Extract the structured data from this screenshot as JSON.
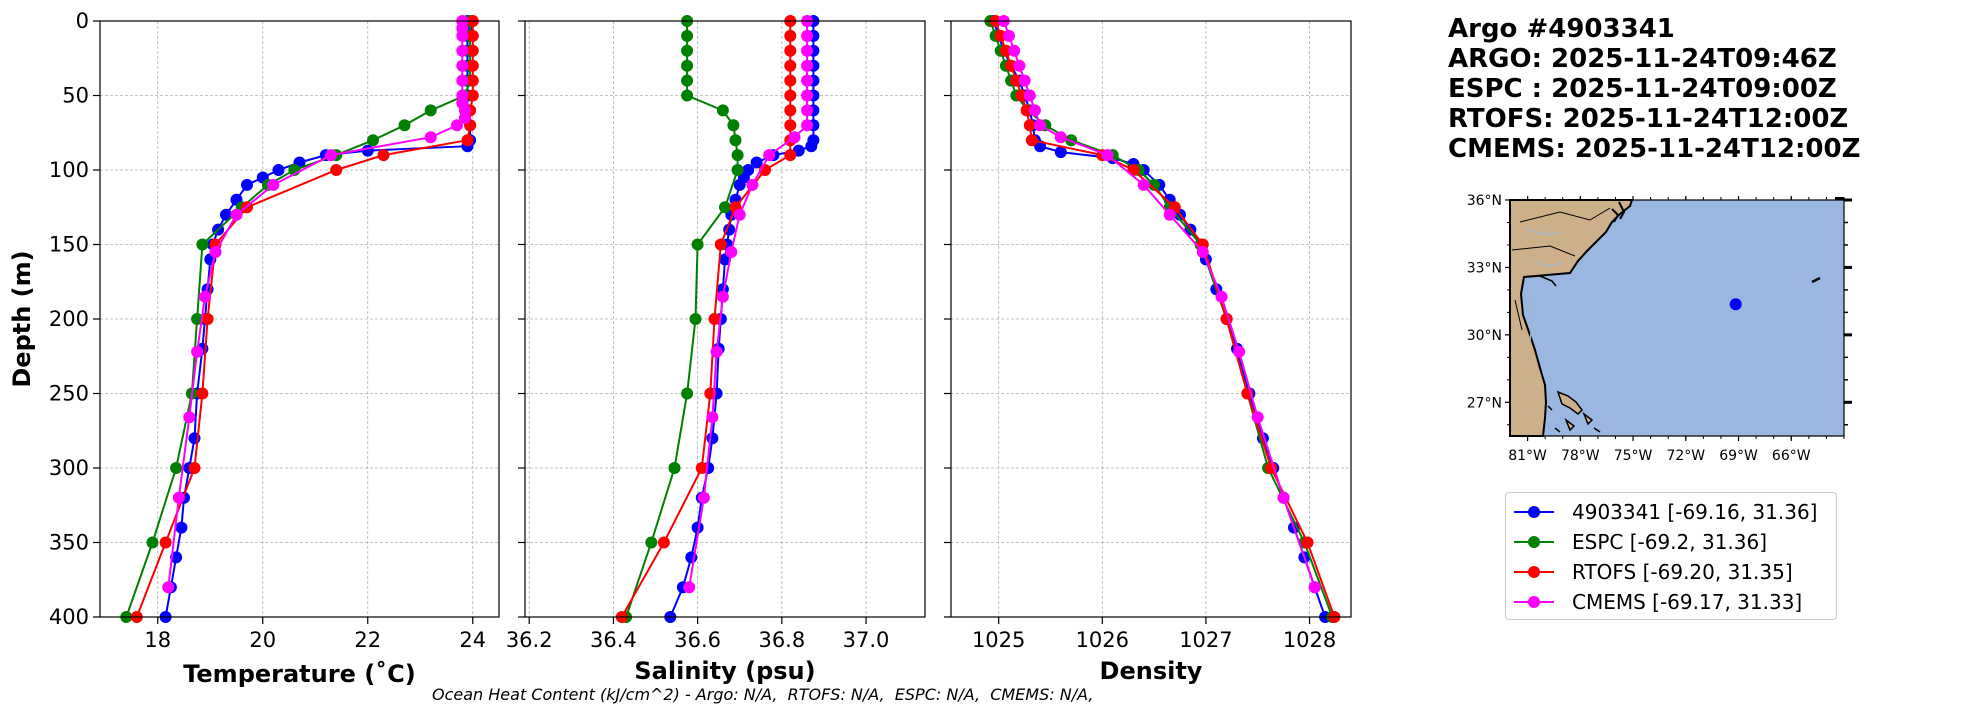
{
  "header": {
    "lines": [
      "Argo #4903341",
      "ARGO: 2025-11-24T09:46Z",
      "ESPC : 2025-11-24T09:00Z",
      "RTOFS: 2025-11-24T12:00Z",
      "CMEMS: 2025-11-24T12:00Z"
    ]
  },
  "footer": "Ocean Heat Content (kJ/cm^2) - Argo: N/A,  RTOFS: N/A,  ESPC: N/A,  CMEMS: N/A,",
  "legend": [
    {
      "label": "4903341 [-69.16, 31.36]",
      "color": "#0000ff"
    },
    {
      "label": "ESPC [-69.2, 31.36]",
      "color": "#008000"
    },
    {
      "label": "RTOFS [-69.20, 31.35]",
      "color": "#ff0000"
    },
    {
      "label": "CMEMS [-69.17, 31.33]",
      "color": "#ff00ff"
    }
  ],
  "colors": {
    "argo": "#0000ff",
    "espc": "#008000",
    "rtofs": "#ff0000",
    "cmems": "#ff00ff",
    "ocean": "#99b7e1",
    "land": "#cdaf8a",
    "grid": "#b0b0b0"
  },
  "chart_data": [
    {
      "type": "line",
      "xlabel": "Temperature (˚C)",
      "ylabel": "Depth (m)",
      "xlim": [
        16.9,
        24.5
      ],
      "ylim": [
        400,
        0
      ],
      "xticks": [
        18,
        20,
        22,
        24
      ],
      "xtick_labels": [
        "18",
        "20",
        "22",
        "24"
      ],
      "yticks": [
        0,
        50,
        100,
        150,
        200,
        250,
        300,
        350,
        400
      ],
      "ytick_labels": [
        "0",
        "50",
        "100",
        "150",
        "200",
        "250",
        "300",
        "350",
        "400"
      ],
      "grid": true,
      "series": [
        {
          "name": "argo",
          "depth": [
            0,
            5,
            10,
            20,
            30,
            40,
            50,
            60,
            70,
            80,
            84,
            87,
            90,
            95,
            100,
            105,
            110,
            120,
            130,
            140,
            150,
            160,
            180,
            200,
            220,
            250,
            280,
            300,
            320,
            340,
            360,
            380,
            400
          ],
          "values": [
            23.9,
            23.9,
            23.9,
            23.9,
            23.9,
            23.9,
            23.9,
            23.9,
            23.95,
            23.95,
            23.9,
            22.0,
            21.2,
            20.7,
            20.3,
            20.0,
            19.7,
            19.5,
            19.3,
            19.15,
            19.05,
            19.0,
            18.95,
            18.9,
            18.85,
            18.75,
            18.7,
            18.6,
            18.5,
            18.45,
            18.35,
            18.25,
            18.15
          ]
        },
        {
          "name": "espc",
          "depth": [
            0,
            10,
            20,
            30,
            40,
            50,
            60,
            70,
            80,
            90,
            100,
            110,
            125,
            150,
            200,
            250,
            300,
            350,
            400
          ],
          "values": [
            23.95,
            23.95,
            23.95,
            23.95,
            23.95,
            23.85,
            23.2,
            22.7,
            22.1,
            21.4,
            20.6,
            20.1,
            19.6,
            18.85,
            18.75,
            18.65,
            18.35,
            17.9,
            17.4
          ]
        },
        {
          "name": "rtofs",
          "depth": [
            0,
            10,
            20,
            30,
            40,
            50,
            60,
            70,
            80,
            90,
            100,
            125,
            150,
            200,
            250,
            300,
            350,
            400
          ],
          "values": [
            24.0,
            24.0,
            24.0,
            24.0,
            24.0,
            24.0,
            23.95,
            23.95,
            23.9,
            22.3,
            21.4,
            19.7,
            19.1,
            18.95,
            18.85,
            18.7,
            18.15,
            17.6
          ]
        },
        {
          "name": "cmems",
          "depth": [
            0,
            5,
            10,
            20,
            30,
            40,
            50,
            55,
            60,
            65,
            70,
            78,
            90,
            110,
            130,
            155,
            185,
            222,
            266,
            320,
            380
          ],
          "values": [
            23.8,
            23.8,
            23.8,
            23.8,
            23.8,
            23.8,
            23.8,
            23.8,
            23.85,
            23.85,
            23.7,
            23.2,
            21.3,
            20.2,
            19.5,
            19.1,
            18.9,
            18.75,
            18.6,
            18.4,
            18.2
          ]
        }
      ]
    },
    {
      "type": "line",
      "xlabel": "Salinity (psu)",
      "ylabel": "",
      "xlim": [
        36.19,
        37.14
      ],
      "ylim": [
        400,
        0
      ],
      "xticks": [
        36.2,
        36.4,
        36.6,
        36.8,
        37.0
      ],
      "xtick_labels": [
        "36.2",
        "36.4",
        "36.6",
        "36.8",
        "37.0"
      ],
      "yticks": [
        0,
        50,
        100,
        150,
        200,
        250,
        300,
        350,
        400
      ],
      "ytick_labels": [],
      "grid": true,
      "series": [
        {
          "name": "argo",
          "depth": [
            0,
            10,
            20,
            30,
            40,
            50,
            60,
            70,
            80,
            84,
            87,
            90,
            95,
            100,
            105,
            110,
            120,
            130,
            140,
            150,
            160,
            180,
            200,
            220,
            250,
            280,
            300,
            320,
            340,
            360,
            380,
            400
          ],
          "values": [
            36.875,
            36.875,
            36.875,
            36.875,
            36.875,
            36.875,
            36.875,
            36.875,
            36.875,
            36.87,
            36.84,
            36.78,
            36.74,
            36.72,
            36.71,
            36.7,
            36.69,
            36.68,
            36.675,
            36.67,
            36.665,
            36.66,
            36.655,
            36.65,
            36.645,
            36.635,
            36.625,
            36.61,
            36.6,
            36.585,
            36.565,
            36.535
          ]
        },
        {
          "name": "espc",
          "depth": [
            0,
            10,
            20,
            30,
            40,
            50,
            60,
            70,
            80,
            90,
            100,
            125,
            150,
            200,
            250,
            300,
            350,
            400
          ],
          "values": [
            36.575,
            36.575,
            36.575,
            36.575,
            36.575,
            36.575,
            36.66,
            36.685,
            36.69,
            36.695,
            36.695,
            36.665,
            36.6,
            36.595,
            36.575,
            36.545,
            36.49,
            36.43
          ]
        },
        {
          "name": "rtofs",
          "depth": [
            0,
            10,
            20,
            30,
            40,
            50,
            60,
            70,
            80,
            90,
            100,
            125,
            150,
            200,
            250,
            300,
            350,
            400
          ],
          "values": [
            36.82,
            36.82,
            36.82,
            36.82,
            36.82,
            36.82,
            36.82,
            36.82,
            36.82,
            36.82,
            36.76,
            36.69,
            36.655,
            36.64,
            36.63,
            36.61,
            36.52,
            36.42
          ]
        },
        {
          "name": "cmems",
          "depth": [
            0,
            10,
            20,
            30,
            40,
            50,
            60,
            70,
            78,
            90,
            110,
            130,
            155,
            185,
            222,
            266,
            320,
            380
          ],
          "values": [
            36.86,
            36.86,
            36.86,
            36.86,
            36.86,
            36.86,
            36.86,
            36.86,
            36.83,
            36.77,
            36.73,
            36.7,
            36.68,
            36.66,
            36.645,
            36.635,
            36.615,
            36.58
          ]
        }
      ]
    },
    {
      "type": "line",
      "xlabel": "Density",
      "ylabel": "",
      "xlim": [
        1024.54,
        1028.4
      ],
      "ylim": [
        400,
        0
      ],
      "xticks": [
        1025,
        1026,
        1027,
        1028
      ],
      "xtick_labels": [
        "1025",
        "1026",
        "1027",
        "1028"
      ],
      "yticks": [
        0,
        50,
        100,
        150,
        200,
        250,
        300,
        350,
        400
      ],
      "ytick_labels": [],
      "grid": true,
      "series": [
        {
          "name": "argo",
          "depth": [
            0,
            10,
            20,
            30,
            40,
            50,
            60,
            70,
            80,
            84,
            88,
            92,
            96,
            100,
            110,
            120,
            130,
            140,
            150,
            160,
            180,
            200,
            220,
            250,
            280,
            300,
            320,
            340,
            360,
            380,
            400
          ],
          "values": [
            1024.95,
            1025.0,
            1025.05,
            1025.12,
            1025.2,
            1025.25,
            1025.3,
            1025.33,
            1025.35,
            1025.4,
            1025.6,
            1026.1,
            1026.3,
            1026.4,
            1026.55,
            1026.65,
            1026.75,
            1026.85,
            1026.95,
            1027.0,
            1027.1,
            1027.2,
            1027.3,
            1027.42,
            1027.55,
            1027.65,
            1027.75,
            1027.85,
            1027.95,
            1028.05,
            1028.15
          ]
        },
        {
          "name": "espc",
          "depth": [
            0,
            10,
            20,
            30,
            40,
            50,
            60,
            70,
            80,
            90,
            100,
            110,
            125,
            150,
            200,
            250,
            300,
            350,
            400
          ],
          "values": [
            1024.92,
            1024.97,
            1025.02,
            1025.07,
            1025.12,
            1025.17,
            1025.28,
            1025.45,
            1025.7,
            1026.1,
            1026.35,
            1026.5,
            1026.65,
            1026.95,
            1027.2,
            1027.4,
            1027.6,
            1027.95,
            1028.22
          ]
        },
        {
          "name": "rtofs",
          "depth": [
            0,
            10,
            20,
            30,
            40,
            50,
            60,
            70,
            80,
            90,
            100,
            125,
            150,
            200,
            250,
            300,
            350,
            400
          ],
          "values": [
            1024.97,
            1025.02,
            1025.07,
            1025.12,
            1025.17,
            1025.22,
            1025.27,
            1025.3,
            1025.32,
            1026.0,
            1026.3,
            1026.7,
            1026.97,
            1027.2,
            1027.4,
            1027.63,
            1027.98,
            1028.24
          ]
        },
        {
          "name": "cmems",
          "depth": [
            0,
            10,
            20,
            30,
            40,
            50,
            60,
            70,
            78,
            90,
            110,
            130,
            155,
            185,
            222,
            266,
            320,
            380
          ],
          "values": [
            1025.05,
            1025.1,
            1025.15,
            1025.2,
            1025.25,
            1025.3,
            1025.35,
            1025.4,
            1025.6,
            1026.05,
            1026.4,
            1026.65,
            1026.97,
            1027.15,
            1027.32,
            1027.5,
            1027.75,
            1028.05
          ]
        }
      ]
    }
  ],
  "map": {
    "lon_labels": [
      "81°W",
      "78°W",
      "75°W",
      "72°W",
      "69°W",
      "66°W"
    ],
    "lat_labels": [
      "36°N",
      "33°N",
      "30°N",
      "27°N"
    ],
    "marker": {
      "lon": -69.16,
      "lat": 31.36
    }
  }
}
